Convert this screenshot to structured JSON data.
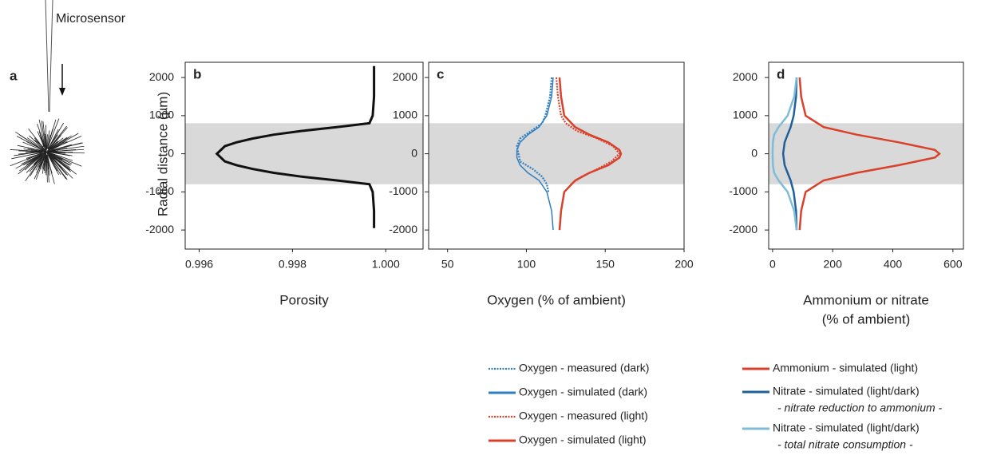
{
  "panel_a": {
    "label": "a",
    "caption": "Microsensor"
  },
  "ylabel": "Radial distance (µm)",
  "chart_data": [
    {
      "type": "line",
      "panel_label": "b",
      "xlabel": [
        "Porosity"
      ],
      "xlim": [
        0.9957,
        1.0008
      ],
      "xticks": [
        0.996,
        0.998,
        {
          "value": 1,
          "label": "1.000"
        }
      ],
      "ylim": [
        -2500,
        2400
      ],
      "yticks": [
        2000,
        1000,
        0,
        -1000,
        -2000
      ],
      "band": [
        -800,
        800
      ],
      "band_color": "#d9d9d9",
      "series": [
        {
          "color": "#111111",
          "style": "solid",
          "y": [
            2300,
            1500,
            1000,
            800,
            700,
            600,
            500,
            400,
            300,
            200,
            0,
            -200,
            -300,
            -400,
            -500,
            -600,
            -700,
            -800,
            -1000,
            -1500,
            -1950
          ],
          "x": [
            0.99975,
            0.99975,
            0.99972,
            0.99965,
            0.99895,
            0.9982,
            0.9976,
            0.99715,
            0.9968,
            0.99655,
            0.99638,
            0.99655,
            0.9968,
            0.99715,
            0.9976,
            0.9982,
            0.99895,
            0.99965,
            0.99972,
            0.99975,
            0.99975
          ]
        }
      ]
    },
    {
      "type": "line",
      "panel_label": "c",
      "xlabel": [
        "Oxygen (% of ambient)"
      ],
      "xlim": [
        38,
        200
      ],
      "xticks": [
        50,
        100,
        150,
        200
      ],
      "ylim": [
        -2500,
        2400
      ],
      "yticks": [
        2000,
        1000,
        0,
        -1000,
        -2000
      ],
      "band": [
        -800,
        800
      ],
      "band_color": "#d9d9d9",
      "series": [
        {
          "name": "Oxygen - measured (dark)",
          "color": "#2e7fc0",
          "style": "dotted",
          "y": [
            2000,
            1500,
            1000,
            800,
            600,
            400,
            200,
            0,
            -200,
            -400,
            -600,
            -800,
            -1000
          ],
          "x": [
            116,
            115,
            112,
            110,
            103,
            96,
            94,
            95,
            96,
            104,
            110,
            113,
            114
          ]
        },
        {
          "name": "Oxygen - simulated (dark)",
          "color": "#2e7fc0",
          "style": "solid",
          "y": [
            2000,
            1500,
            1000,
            700,
            500,
            300,
            100,
            0,
            -100,
            -300,
            -500,
            -700,
            -1000,
            -1500,
            -2000
          ],
          "x": [
            117,
            116,
            113,
            108,
            101,
            96,
            94,
            94,
            94,
            96,
            101,
            108,
            113,
            116,
            117
          ]
        },
        {
          "name": "Oxygen - measured (light)",
          "color": "#d9412b",
          "style": "dotted",
          "y": [
            2000,
            1500,
            1000,
            800,
            600,
            400,
            200,
            0,
            -200,
            -400,
            -600,
            -800
          ],
          "x": [
            119,
            120,
            122,
            125,
            132,
            145,
            155,
            159,
            154,
            145,
            135,
            128
          ]
        },
        {
          "name": "Oxygen - simulated (light)",
          "color": "#d9412b",
          "style": "solid",
          "y": [
            2000,
            1500,
            1000,
            700,
            500,
            300,
            100,
            0,
            -100,
            -300,
            -500,
            -700,
            -1000,
            -1500,
            -2000
          ],
          "x": [
            121,
            122,
            124,
            131,
            140,
            152,
            159,
            160,
            159,
            152,
            140,
            131,
            124,
            122,
            121
          ]
        }
      ]
    },
    {
      "type": "line",
      "panel_label": "d",
      "xlabel": [
        "Ammonium or nitrate",
        "(% of ambient)"
      ],
      "xlim": [
        -13,
        635
      ],
      "xticks": [
        0,
        200,
        400,
        600
      ],
      "ylim": [
        -2500,
        2400
      ],
      "yticks": [
        2000,
        1000,
        0,
        -1000,
        -2000
      ],
      "band": [
        -800,
        800
      ],
      "band_color": "#d9d9d9",
      "series": [
        {
          "name": "Ammonium - simulated (light)",
          "color": "#d9412b",
          "style": "solid",
          "y": [
            2000,
            1500,
            1000,
            700,
            500,
            300,
            100,
            0,
            -100,
            -300,
            -500,
            -700,
            -1000,
            -1500,
            -2000
          ],
          "x": [
            90,
            95,
            110,
            170,
            280,
            420,
            540,
            555,
            540,
            420,
            280,
            170,
            110,
            95,
            90
          ]
        },
        {
          "name": "Nitrate - simulated (light/dark)",
          "note": "- nitrate reduction to ammonium -",
          "color": "#1f5f9c",
          "style": "solid",
          "y": [
            2000,
            1500,
            1000,
            700,
            500,
            300,
            0,
            -300,
            -500,
            -700,
            -1000,
            -1500,
            -2000
          ],
          "x": [
            80,
            78,
            70,
            60,
            50,
            40,
            35,
            40,
            50,
            60,
            70,
            78,
            80
          ]
        },
        {
          "name": "Nitrate - simulated (light/dark)",
          "note": "- total nitrate consumption -",
          "color": "#7fbcd9",
          "style": "solid",
          "y": [
            2000,
            1500,
            1000,
            700,
            500,
            300,
            0,
            -300,
            -500,
            -700,
            -1000,
            -1500,
            -2000
          ],
          "x": [
            80,
            72,
            50,
            20,
            5,
            1,
            0,
            1,
            5,
            20,
            50,
            72,
            80
          ]
        }
      ]
    }
  ]
}
